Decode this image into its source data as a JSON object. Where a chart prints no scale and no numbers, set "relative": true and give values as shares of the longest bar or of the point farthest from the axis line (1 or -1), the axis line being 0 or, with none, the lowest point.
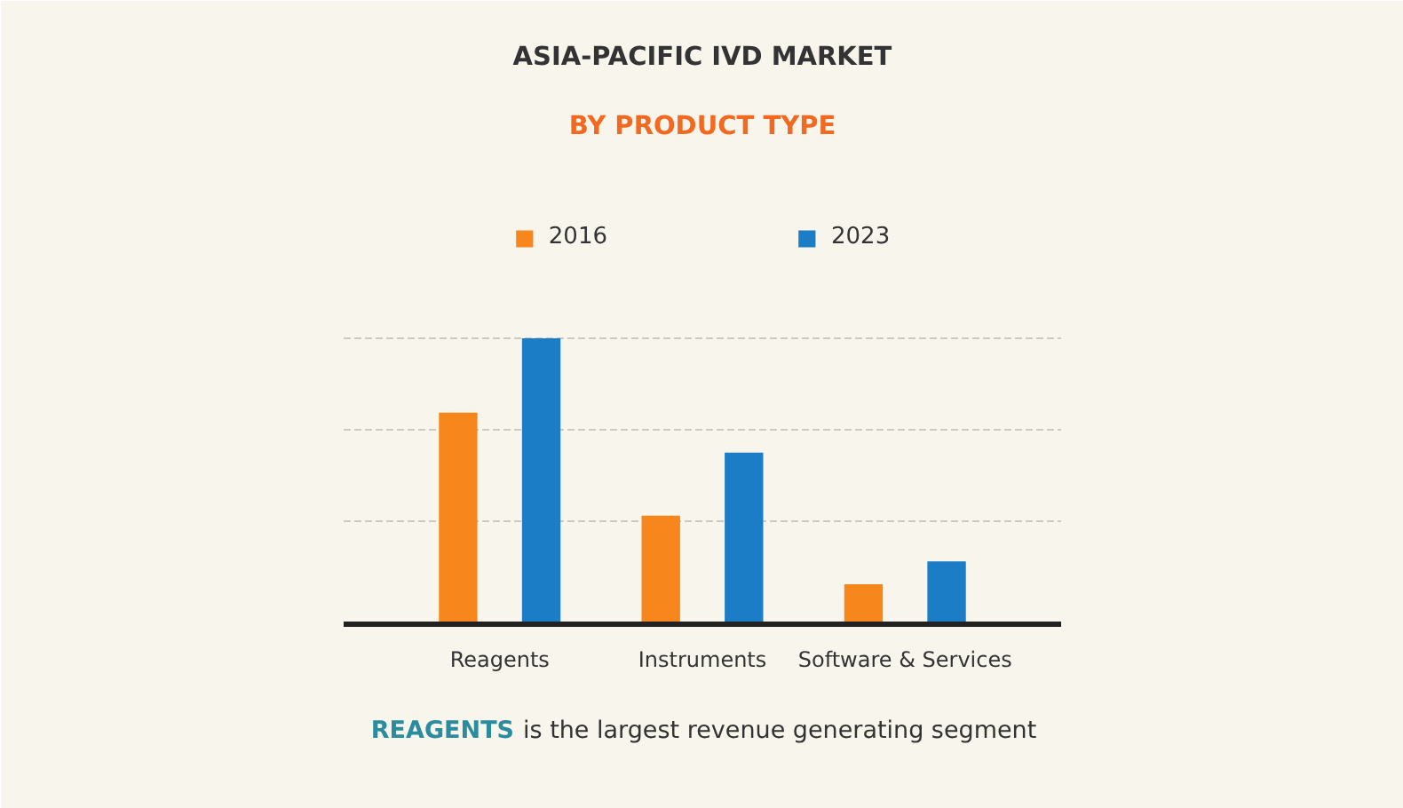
{
  "chart_data": {
    "type": "bar",
    "title": "ASIA-PACIFIC IVD MARKET",
    "subtitle": "BY PRODUCT TYPE",
    "categories": [
      "Reagents",
      "Instruments",
      "Software & Services"
    ],
    "series": [
      {
        "name": "2016",
        "color": "#f7861c",
        "values": [
          0.74,
          0.38,
          0.14
        ]
      },
      {
        "name": "2023",
        "color": "#1a7dc6",
        "values": [
          1,
          0.6,
          0.22
        ]
      }
    ],
    "relative": true,
    "legend": "top",
    "ref_lines": [
      {
        "axis": "y",
        "value": 0.36,
        "color": "#cfcabd",
        "line_style": "dashed"
      },
      {
        "axis": "y",
        "value": 0.68,
        "color": "#cfcabd",
        "line_style": "dashed"
      },
      {
        "axis": "y",
        "value": 1.0,
        "color": "#cfcabd",
        "line_style": "dashed"
      }
    ],
    "annotations": [
      "REAGENTS is the largest revenue generating segment"
    ]
  }
}
